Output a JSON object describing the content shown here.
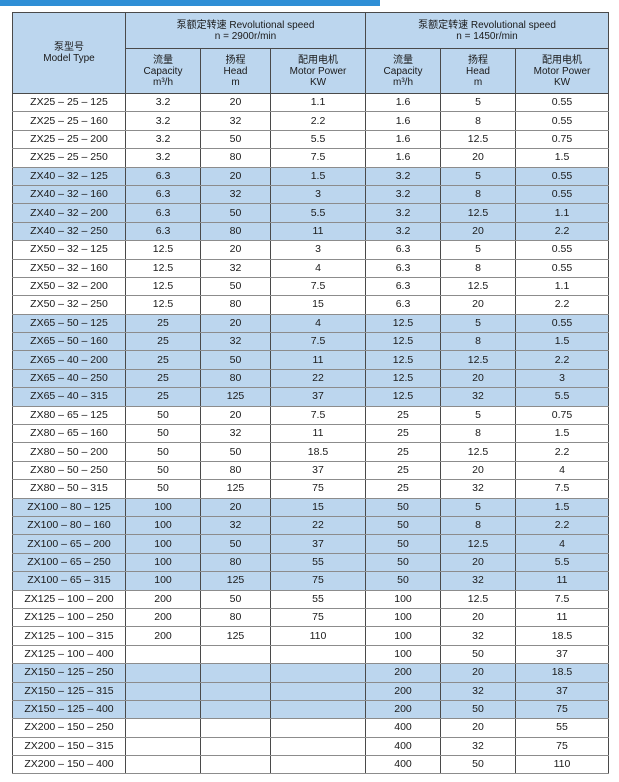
{
  "table": {
    "model_header": [
      "泵型号",
      "Model Type"
    ],
    "groups": [
      {
        "title": "泵额定转速 Revolutional speed",
        "speed": "n = 2900r/min",
        "columns": [
          [
            "流量",
            "Capacity",
            "m³/h"
          ],
          [
            "扬程",
            "Head",
            "m"
          ],
          [
            "配用电机",
            "Motor Power",
            "KW"
          ]
        ]
      },
      {
        "title": "泵额定转速 Revolutional speed",
        "speed": "n = 1450r/min",
        "columns": [
          [
            "流量",
            "Capacity",
            "m³/h"
          ],
          [
            "扬程",
            "Head",
            "m"
          ],
          [
            "配用电机",
            "Motor Power",
            "KW"
          ]
        ]
      }
    ],
    "shade_color": "#bcd6ee",
    "row_groups": [
      {
        "shaded": false,
        "rows": [
          [
            "ZX25 – 25 – 125",
            3.2,
            20,
            1.1,
            1.6,
            5,
            0.55
          ],
          [
            "ZX25 – 25 – 160",
            3.2,
            32,
            2.2,
            1.6,
            8,
            0.55
          ],
          [
            "ZX25 – 25 – 200",
            3.2,
            50,
            5.5,
            1.6,
            12.5,
            0.75
          ],
          [
            "ZX25 – 25 – 250",
            3.2,
            80,
            7.5,
            1.6,
            20,
            1.5
          ]
        ]
      },
      {
        "shaded": true,
        "rows": [
          [
            "ZX40 – 32 – 125",
            6.3,
            20,
            1.5,
            3.2,
            5,
            0.55
          ],
          [
            "ZX40 – 32 – 160",
            6.3,
            32,
            3,
            3.2,
            8,
            0.55
          ],
          [
            "ZX40 – 32 – 200",
            6.3,
            50,
            5.5,
            3.2,
            12.5,
            1.1
          ],
          [
            "ZX40 – 32 – 250",
            6.3,
            80,
            11,
            3.2,
            20,
            2.2
          ]
        ]
      },
      {
        "shaded": false,
        "rows": [
          [
            "ZX50 – 32 – 125",
            12.5,
            20,
            3,
            6.3,
            5,
            0.55
          ],
          [
            "ZX50 – 32 – 160",
            12.5,
            32,
            4,
            6.3,
            8,
            0.55
          ],
          [
            "ZX50 – 32 – 200",
            12.5,
            50,
            7.5,
            6.3,
            12.5,
            1.1
          ],
          [
            "ZX50 – 32 – 250",
            12.5,
            80,
            15,
            6.3,
            20,
            2.2
          ]
        ]
      },
      {
        "shaded": true,
        "rows": [
          [
            "ZX65 – 50 – 125",
            25,
            20,
            4,
            12.5,
            5,
            0.55
          ],
          [
            "ZX65 – 50 – 160",
            25,
            32,
            7.5,
            12.5,
            8,
            1.5
          ],
          [
            "ZX65 – 40 – 200",
            25,
            50,
            11,
            12.5,
            12.5,
            2.2
          ],
          [
            "ZX65 – 40 – 250",
            25,
            80,
            22,
            12.5,
            20,
            3
          ],
          [
            "ZX65 – 40 – 315",
            25,
            125,
            37,
            12.5,
            32,
            5.5
          ]
        ]
      },
      {
        "shaded": false,
        "rows": [
          [
            "ZX80 – 65 – 125",
            50,
            20,
            7.5,
            25,
            5,
            0.75
          ],
          [
            "ZX80 – 65 – 160",
            50,
            32,
            11,
            25,
            8,
            1.5
          ],
          [
            "ZX80 – 50 – 200",
            50,
            50,
            18.5,
            25,
            12.5,
            2.2
          ],
          [
            "ZX80 – 50 – 250",
            50,
            80,
            37,
            25,
            20,
            4
          ],
          [
            "ZX80 – 50 – 315",
            50,
            125,
            75,
            25,
            32,
            7.5
          ]
        ]
      },
      {
        "shaded": true,
        "rows": [
          [
            "ZX100 – 80 – 125",
            100,
            20,
            15,
            50,
            5,
            1.5
          ],
          [
            "ZX100 – 80 – 160",
            100,
            32,
            22,
            50,
            8,
            2.2
          ],
          [
            "ZX100 – 65 – 200",
            100,
            50,
            37,
            50,
            12.5,
            4
          ],
          [
            "ZX100 – 65 – 250",
            100,
            80,
            55,
            50,
            20,
            5.5
          ],
          [
            "ZX100 – 65 – 315",
            100,
            125,
            75,
            50,
            32,
            11
          ]
        ]
      },
      {
        "shaded": false,
        "rows": [
          [
            "ZX125 – 100 – 200",
            200,
            50,
            55,
            100,
            12.5,
            7.5
          ],
          [
            "ZX125 – 100 – 250",
            200,
            80,
            75,
            100,
            20,
            11
          ],
          [
            "ZX125 – 100 – 315",
            200,
            125,
            110,
            100,
            32,
            18.5
          ],
          [
            "ZX125 – 100 – 400",
            null,
            null,
            null,
            100,
            50,
            37
          ]
        ]
      },
      {
        "shaded": true,
        "rows": [
          [
            "ZX150 – 125 – 250",
            null,
            null,
            null,
            200,
            20,
            18.5
          ],
          [
            "ZX150 – 125 – 315",
            null,
            null,
            null,
            200,
            32,
            37
          ],
          [
            "ZX150 – 125 – 400",
            null,
            null,
            null,
            200,
            50,
            75
          ]
        ]
      },
      {
        "shaded": false,
        "rows": [
          [
            "ZX200 – 150 – 250",
            null,
            null,
            null,
            400,
            20,
            55
          ],
          [
            "ZX200 – 150 – 315",
            null,
            null,
            null,
            400,
            32,
            75
          ],
          [
            "ZX200 – 150 – 400",
            null,
            null,
            null,
            400,
            50,
            110
          ]
        ]
      }
    ]
  }
}
